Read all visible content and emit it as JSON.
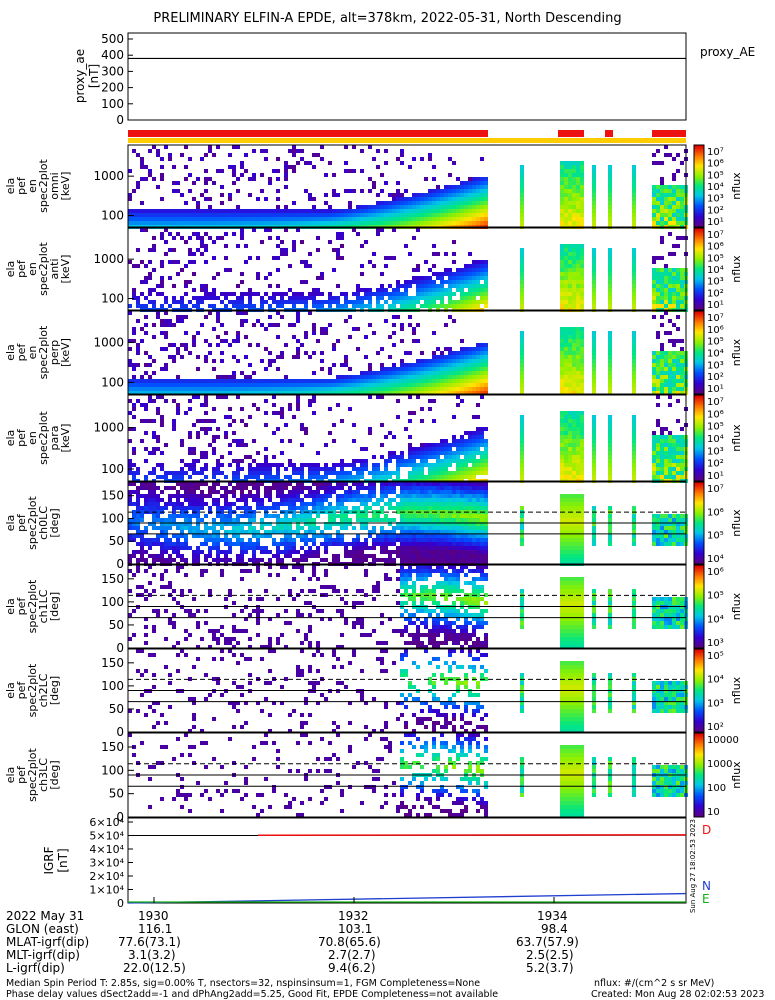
{
  "title": "PRELIMINARY ELFIN-A EPDE, alt=378km, 2022-05-31, North Descending",
  "chart_data": [
    {
      "type": "line",
      "name": "proxy_ae",
      "ylabel": [
        "proxy_ae",
        "[nT]"
      ],
      "ylim": [
        0,
        500
      ],
      "yticks": [
        "500",
        "400",
        "300",
        "200",
        "100",
        "0"
      ],
      "legend": "proxy_AE",
      "value": 380
    },
    {
      "type": "heatmap",
      "ylabel": [
        "ela",
        "pef",
        "en",
        "spec2plot",
        "omni",
        "[keV]"
      ],
      "yticks": [
        "1000",
        "100"
      ],
      "colorbar": {
        "label": "nflux",
        "ticks": [
          "10⁷",
          "10⁶",
          "10⁵",
          "10⁴",
          "10³",
          "10²",
          "10¹"
        ]
      }
    },
    {
      "type": "heatmap",
      "ylabel": [
        "ela",
        "pef",
        "en",
        "spec2plot",
        "anti",
        "[keV]"
      ],
      "yticks": [
        "1000",
        "100"
      ],
      "colorbar": {
        "label": "nflux",
        "ticks": [
          "10⁷",
          "10⁶",
          "10⁵",
          "10⁴",
          "10³",
          "10²",
          "10¹"
        ]
      }
    },
    {
      "type": "heatmap",
      "ylabel": [
        "ela",
        "pef",
        "en",
        "spec2plot",
        "perp",
        "[keV]"
      ],
      "yticks": [
        "1000",
        "100"
      ],
      "colorbar": {
        "label": "nflux",
        "ticks": [
          "10⁷",
          "10⁶",
          "10⁵",
          "10⁴",
          "10³",
          "10²",
          "10¹"
        ]
      }
    },
    {
      "type": "heatmap",
      "ylabel": [
        "ela",
        "pef",
        "en",
        "spec2plot",
        "para",
        "[keV]"
      ],
      "yticks": [
        "1000",
        "100"
      ],
      "colorbar": {
        "label": "nflux",
        "ticks": [
          "10⁷",
          "10⁶",
          "10⁵",
          "10⁴",
          "10³",
          "10²",
          "10¹"
        ]
      }
    },
    {
      "type": "heatmap",
      "ylabel": [
        "ela",
        "pef",
        "spec2plot",
        "ch0LC",
        "[deg]"
      ],
      "yticks": [
        "150",
        "100",
        "50",
        "0"
      ],
      "colorbar": {
        "label": "nflux",
        "ticks": [
          "10⁷",
          "10⁶",
          "10⁵",
          "10⁴"
        ]
      }
    },
    {
      "type": "heatmap",
      "ylabel": [
        "ela",
        "pef",
        "spec2plot",
        "ch1LC",
        "[deg]"
      ],
      "yticks": [
        "150",
        "100",
        "50",
        "0"
      ],
      "colorbar": {
        "label": "nflux",
        "ticks": [
          "10⁶",
          "10⁵",
          "10⁴",
          "10³"
        ]
      }
    },
    {
      "type": "heatmap",
      "ylabel": [
        "ela",
        "pef",
        "spec2plot",
        "ch2LC",
        "[deg]"
      ],
      "yticks": [
        "150",
        "100",
        "50",
        "0"
      ],
      "colorbar": {
        "label": "nflux",
        "ticks": [
          "10⁵",
          "10⁴",
          "10³",
          "10²"
        ]
      }
    },
    {
      "type": "heatmap",
      "ylabel": [
        "ela",
        "pef",
        "spec2plot",
        "ch3LC",
        "[deg]"
      ],
      "yticks": [
        "150",
        "100",
        "50",
        "0"
      ],
      "colorbar": {
        "label": "nflux",
        "ticks": [
          "10000",
          "1000",
          "100",
          "10"
        ]
      }
    },
    {
      "type": "line",
      "ylabel": [
        "IGRF",
        "[nT]"
      ],
      "yticks": [
        "6×10⁴",
        "5×10⁴",
        "4×10⁴",
        "3×10⁴",
        "2×10⁴",
        "1×10⁴",
        "0"
      ],
      "ylim": [
        0,
        60000
      ],
      "legend": [
        "D",
        "N",
        "E"
      ]
    }
  ],
  "time_axis": {
    "date_label": "2022 May 31",
    "ticks": [
      "1930",
      "1932",
      "1934"
    ],
    "rows": [
      {
        "label": "GLON (east)",
        "values": [
          "116.1",
          "103.1",
          "98.4"
        ]
      },
      {
        "label": "MLAT-igrf(dip)",
        "values": [
          "77.6(73.1)",
          "70.8(65.6)",
          "63.7(57.9)"
        ]
      },
      {
        "label": "MLT-igrf(dip)",
        "values": [
          "3.1(3.2)",
          "2.7(2.7)",
          "2.5(2.5)"
        ]
      },
      {
        "label": "L-igrf(dip)",
        "values": [
          "22.0(12.5)",
          "9.4(6.2)",
          "5.2(3.7)"
        ]
      }
    ]
  },
  "footer": {
    "line1": "Median Spin Period T: 2.85s, sig=0.00% T, nsectors=32, nspinsinsum=1, FGM Completeness=None",
    "line2": "Phase delay values dSect2add=-1 and dPhAng2add=5.25, Good Fit, EPDE Completeness=not available",
    "units": "nflux: #/(cm^2 s sr MeV)",
    "created": "Created: Mon Aug 28 02:02:53 2023"
  },
  "side_stamp": "Sun Aug 27 18:02:53 2023",
  "colors": {
    "red": "#ee1111",
    "yellow": "#ffcc00",
    "blue": "#1f3fcf",
    "green": "#10b010"
  }
}
